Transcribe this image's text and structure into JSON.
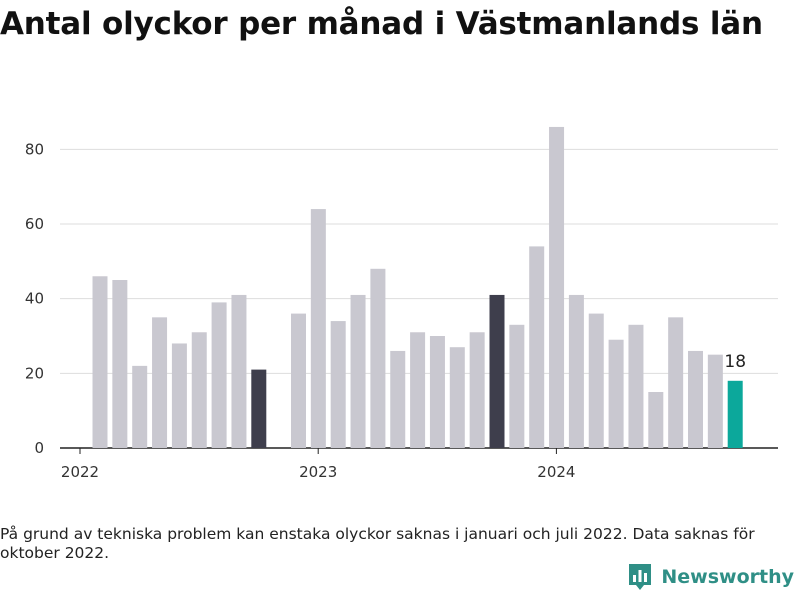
{
  "title": "Antal olyckor per månad i Västmanlands län",
  "footnote": "På grund av tekniska problem kan enstaka olyckor saknas i januari och juli 2022. Data saknas för oktober 2022.",
  "brand": {
    "name": "Newsworthy",
    "icon": "newsworthy-logo-icon"
  },
  "colors": {
    "default": "#c9c8d0",
    "highlight": "#3e3e4c",
    "latest": "#0ca89b",
    "grid": "#dddddd",
    "axis": "#222222"
  },
  "chart_data": {
    "type": "bar",
    "title": "Antal olyckor per månad i Västmanlands län",
    "xlabel": "",
    "ylabel": "",
    "ylim": [
      0,
      90
    ],
    "yticks": [
      0,
      20,
      40,
      60,
      80
    ],
    "grid": true,
    "x_tick_labels": [
      "2022",
      "2023",
      "2024"
    ],
    "categories": [
      "2022-01",
      "2022-02",
      "2022-03",
      "2022-04",
      "2022-05",
      "2022-06",
      "2022-07",
      "2022-08",
      "2022-09",
      "2022-10",
      "2022-11",
      "2022-12",
      "2023-01",
      "2023-02",
      "2023-03",
      "2023-04",
      "2023-05",
      "2023-06",
      "2023-07",
      "2023-08",
      "2023-09",
      "2023-10",
      "2023-11",
      "2023-12",
      "2024-01",
      "2024-02",
      "2024-03",
      "2024-04",
      "2024-05",
      "2024-06",
      "2024-07",
      "2024-08",
      "2024-09",
      "2024-10",
      "2024-11",
      "2024-12"
    ],
    "values": [
      46,
      45,
      22,
      35,
      28,
      31,
      39,
      41,
      21,
      null,
      36,
      64,
      34,
      41,
      48,
      26,
      31,
      30,
      27,
      31,
      41,
      33,
      54,
      86,
      41,
      36,
      29,
      33,
      15,
      35,
      26,
      25,
      18,
      null,
      null,
      null
    ],
    "highlighted": [
      "2022-09",
      "2023-09"
    ],
    "latest": "2024-09",
    "data_labels": [
      {
        "category": "2024-09",
        "text": "18"
      }
    ]
  }
}
